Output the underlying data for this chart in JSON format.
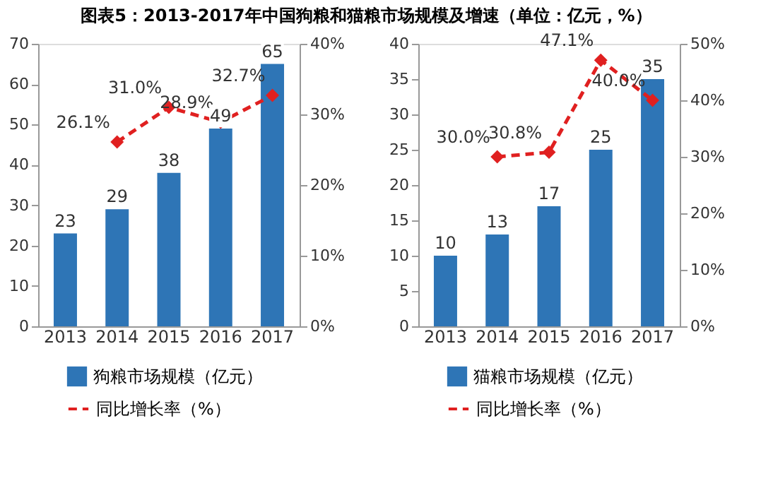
{
  "chart_data": [
    {
      "type": "bar",
      "title": "图表5：2013-2017年中国狗粮和猫粮市场规模及增速（单位：亿元，%）",
      "categories": [
        "2013",
        "2014",
        "2015",
        "2016",
        "2017"
      ],
      "series": [
        {
          "name": "狗粮市场规模（亿元）",
          "color": "#2e75b6",
          "values": [
            23,
            29,
            38,
            49,
            65
          ]
        },
        {
          "name": "同比增长率（%）",
          "type": "line",
          "axis": "y2",
          "color": "#e02020",
          "line_style": "dashed",
          "marker": "diamond",
          "values": [
            null,
            26.1,
            31.0,
            28.9,
            32.7
          ],
          "value_labels": [
            null,
            "26.1%",
            "31.0%",
            "28.9%",
            "32.7%"
          ]
        }
      ],
      "ylim": [
        0,
        70
      ],
      "yticks": [
        0,
        10,
        20,
        30,
        40,
        50,
        60,
        70
      ],
      "y2lim": [
        0,
        40
      ],
      "y2ticks": [
        {
          "value": 0,
          "label": "0%"
        },
        {
          "value": 10,
          "label": "10%"
        },
        {
          "value": 20,
          "label": "20%"
        },
        {
          "value": 30,
          "label": "30%"
        },
        {
          "value": 40,
          "label": "40%"
        }
      ],
      "data_labels": true,
      "grid": false,
      "legend": "bottom"
    },
    {
      "type": "bar",
      "categories": [
        "2013",
        "2014",
        "2015",
        "2016",
        "2017"
      ],
      "series": [
        {
          "name": "猫粮市场规模（亿元）",
          "color": "#2e75b6",
          "values": [
            10,
            13,
            17,
            25,
            35
          ]
        },
        {
          "name": "同比增长率（%）",
          "type": "line",
          "axis": "y2",
          "color": "#e02020",
          "line_style": "dashed",
          "marker": "diamond",
          "values": [
            null,
            30.0,
            30.8,
            47.1,
            40.0
          ],
          "value_labels": [
            null,
            "30.0%",
            "30.8%",
            "47.1%",
            "40.0%"
          ]
        }
      ],
      "ylim": [
        0,
        40
      ],
      "yticks": [
        0,
        5,
        10,
        15,
        20,
        25,
        30,
        35,
        40
      ],
      "y2lim": [
        0,
        50
      ],
      "y2ticks": [
        {
          "value": 0,
          "label": "0%"
        },
        {
          "value": 10,
          "label": "10%"
        },
        {
          "value": 20,
          "label": "20%"
        },
        {
          "value": 30,
          "label": "30%"
        },
        {
          "value": 40,
          "label": "40%"
        },
        {
          "value": 50,
          "label": "50%"
        }
      ],
      "data_labels": true,
      "grid": false,
      "legend": "bottom"
    }
  ]
}
